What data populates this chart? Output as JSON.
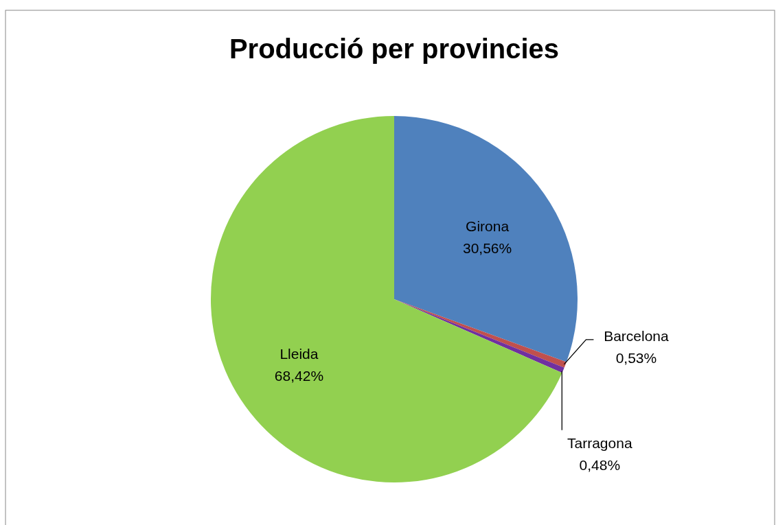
{
  "chart_data": {
    "type": "pie",
    "title": "Producció per provincies",
    "categories": [
      "Girona",
      "Barcelona",
      "Tarragona",
      "Lleida"
    ],
    "values": [
      30.56,
      0.53,
      0.48,
      68.42
    ],
    "colors": [
      "#4f81bd",
      "#c0504d",
      "#7030a0",
      "#92d050"
    ],
    "value_labels": [
      "30,56%",
      "0,53%",
      "0,48%",
      "68,42%"
    ],
    "legend": false
  }
}
